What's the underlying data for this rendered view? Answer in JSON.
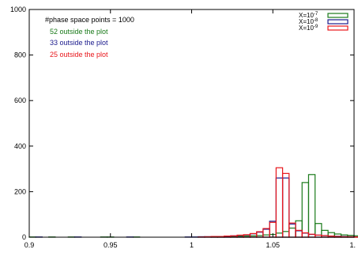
{
  "chart_data": {
    "type": "histogram",
    "xlim": [
      0.9,
      1.1
    ],
    "ylim": [
      0,
      1000
    ],
    "x_ticks": [
      {
        "value": 0.9,
        "label": "0.9"
      },
      {
        "value": 0.95,
        "label": "0.95"
      },
      {
        "value": 1.0,
        "label": "1"
      },
      {
        "value": 1.05,
        "label": "1.05"
      },
      {
        "value": 1.1,
        "label": "1."
      }
    ],
    "y_ticks": [
      {
        "value": 0,
        "label": "0"
      },
      {
        "value": 200,
        "label": "200"
      },
      {
        "value": 400,
        "label": "400"
      },
      {
        "value": 600,
        "label": "600"
      },
      {
        "value": 800,
        "label": "800"
      },
      {
        "value": 1000,
        "label": "1000"
      }
    ],
    "bin_width": 0.004,
    "bin_edges_start": 0.9,
    "grid": false,
    "legend_position": "top-right",
    "annotations": [
      {
        "text": "#phase space points =  1000",
        "color": "#000000"
      },
      {
        "text": "52 outside the plot",
        "color": "#1a7a1a"
      },
      {
        "text": "33 outside the plot",
        "color": "#1a1a8c"
      },
      {
        "text": "25 outside the plot",
        "color": "#e8161b"
      }
    ],
    "series": [
      {
        "legend_base": "X=10",
        "legend_exp": "-7",
        "color": "#1a7a1a",
        "values": [
          1,
          0,
          0,
          1,
          0,
          0,
          1,
          0,
          0,
          0,
          0,
          1,
          1,
          0,
          0,
          0,
          1,
          0,
          0,
          0,
          0,
          0,
          0,
          0,
          0,
          0,
          0,
          0,
          3,
          2,
          1,
          2,
          4,
          5,
          6,
          7,
          10,
          12,
          18,
          25,
          40,
          72,
          240,
          275,
          60,
          30,
          20,
          14,
          10,
          8,
          6,
          4,
          3,
          2,
          2,
          1,
          1,
          0,
          0,
          1,
          1,
          0,
          0,
          0,
          1,
          0,
          0,
          0,
          0,
          0,
          1,
          0,
          0,
          0,
          0,
          1,
          0,
          0,
          0,
          1
        ]
      },
      {
        "legend_base": "X=10",
        "legend_exp": "-8",
        "color": "#1a1a8c",
        "values": [
          0,
          1,
          0,
          0,
          0,
          0,
          0,
          1,
          0,
          0,
          0,
          0,
          0,
          0,
          0,
          1,
          0,
          0,
          0,
          0,
          0,
          0,
          0,
          0,
          1,
          1,
          2,
          2,
          3,
          3,
          4,
          6,
          8,
          10,
          15,
          22,
          35,
          70,
          260,
          260,
          58,
          28,
          18,
          12,
          9,
          7,
          5,
          4,
          3,
          2,
          1,
          1,
          0,
          1,
          0,
          0,
          0,
          0,
          1,
          0,
          0,
          0,
          0,
          0,
          0,
          0,
          1,
          0,
          0,
          0,
          0,
          0,
          0,
          0,
          0,
          0,
          0,
          0,
          0,
          0
        ]
      },
      {
        "legend_base": "X=10",
        "legend_exp": "-9",
        "color": "#e8161b",
        "values": [
          0,
          0,
          0,
          0,
          0,
          0,
          0,
          0,
          0,
          0,
          0,
          0,
          0,
          0,
          0,
          0,
          0,
          0,
          0,
          0,
          0,
          0,
          0,
          0,
          0,
          0,
          1,
          2,
          3,
          3,
          5,
          6,
          9,
          11,
          16,
          24,
          38,
          65,
          305,
          280,
          62,
          30,
          19,
          13,
          9,
          7,
          5,
          3,
          2,
          2,
          1,
          1,
          1,
          0,
          0,
          0,
          0,
          0,
          0,
          0,
          0,
          0,
          0,
          0,
          0,
          0,
          0,
          0,
          0,
          0,
          0,
          0,
          0,
          0,
          0,
          0,
          0,
          0,
          0,
          0
        ]
      }
    ]
  }
}
